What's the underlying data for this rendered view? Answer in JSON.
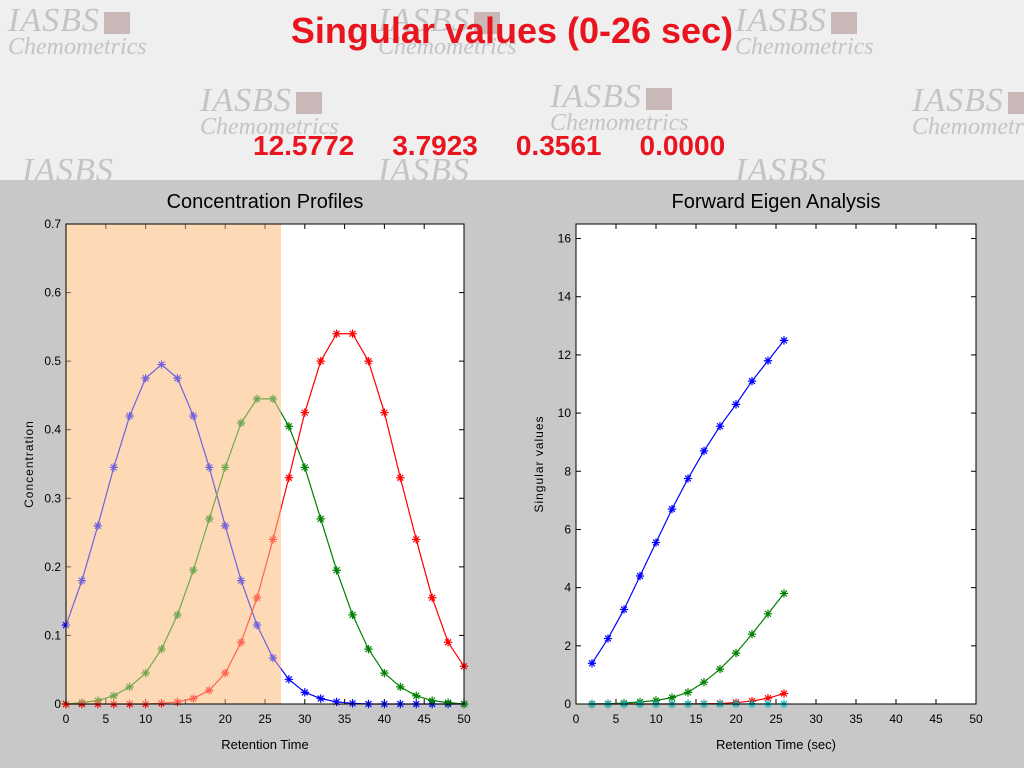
{
  "header": {
    "title": "Singular values  (0-26 sec)",
    "singular_values": [
      "12.5772",
      "3.7923",
      "0.3561",
      "0.0000"
    ],
    "watermark_line1": "IASBS",
    "watermark_line2": "Chemometrics"
  },
  "colors": {
    "title": "#e8141e",
    "shade": "#fdd9b5",
    "blue": "#0000ff",
    "green": "#008000",
    "red": "#ff0000",
    "purple": "#a080d0",
    "cyan": "#00c0c0"
  },
  "chart_data": [
    {
      "type": "line",
      "title": "Concentration Profiles",
      "xlabel": "Retention Time",
      "ylabel": "Concentration",
      "xlim": [
        0,
        50
      ],
      "ylim": [
        0,
        0.7
      ],
      "xticks": [
        0,
        5,
        10,
        15,
        20,
        25,
        30,
        35,
        40,
        45,
        50
      ],
      "yticks": [
        0,
        0.1,
        0.2,
        0.3,
        0.4,
        0.5,
        0.6,
        0.7
      ],
      "shaded_region": [
        0,
        27
      ],
      "x": [
        0,
        2,
        4,
        6,
        8,
        10,
        12,
        14,
        16,
        18,
        20,
        22,
        24,
        26,
        28,
        30,
        32,
        34,
        36,
        38,
        40,
        42,
        44,
        46,
        48,
        50
      ],
      "series": [
        {
          "color": "blue",
          "values": [
            0.115,
            0.18,
            0.26,
            0.345,
            0.42,
            0.475,
            0.495,
            0.475,
            0.42,
            0.345,
            0.26,
            0.18,
            0.115,
            0.067,
            0.036,
            0.017,
            0.008,
            0.003,
            0.001,
            0,
            0,
            0,
            0,
            0,
            0,
            0
          ]
        },
        {
          "color": "green",
          "values": [
            0,
            0.002,
            0.005,
            0.012,
            0.025,
            0.045,
            0.08,
            0.13,
            0.195,
            0.27,
            0.345,
            0.41,
            0.445,
            0.445,
            0.405,
            0.345,
            0.27,
            0.195,
            0.13,
            0.08,
            0.045,
            0.025,
            0.012,
            0.005,
            0.002,
            0
          ]
        },
        {
          "color": "red",
          "values": [
            0,
            0,
            0,
            0,
            0,
            0,
            0.001,
            0.003,
            0.008,
            0.02,
            0.045,
            0.09,
            0.155,
            0.24,
            0.33,
            0.425,
            0.5,
            0.54,
            0.54,
            0.5,
            0.425,
            0.33,
            0.24,
            0.155,
            0.09,
            0.055
          ]
        }
      ]
    },
    {
      "type": "line",
      "title": "Forward Eigen Analysis",
      "xlabel": "Retention Time (sec)",
      "ylabel": "Singular values",
      "xlim": [
        0,
        50
      ],
      "ylim": [
        0,
        16.5
      ],
      "xticks": [
        0,
        5,
        10,
        15,
        20,
        25,
        30,
        35,
        40,
        45,
        50
      ],
      "yticks": [
        0,
        2,
        4,
        6,
        8,
        10,
        12,
        14,
        16
      ],
      "x": [
        2,
        4,
        6,
        8,
        10,
        12,
        14,
        16,
        18,
        20,
        22,
        24,
        26
      ],
      "series": [
        {
          "color": "blue",
          "values": [
            1.4,
            2.25,
            3.25,
            4.4,
            5.55,
            6.7,
            7.75,
            8.7,
            9.55,
            10.3,
            11.1,
            11.8,
            12.5
          ]
        },
        {
          "color": "green",
          "values": [
            0,
            0.01,
            0.03,
            0.07,
            0.12,
            0.22,
            0.4,
            0.75,
            1.2,
            1.75,
            2.4,
            3.1,
            3.8
          ]
        },
        {
          "color": "red",
          "values": [
            0,
            0,
            0,
            0,
            0,
            0,
            0,
            0.01,
            0.02,
            0.05,
            0.1,
            0.2,
            0.36
          ]
        },
        {
          "color": "cyan",
          "values": [
            0,
            0,
            0,
            0,
            0,
            0,
            0,
            0,
            0,
            0,
            0,
            0,
            0
          ]
        }
      ]
    }
  ]
}
